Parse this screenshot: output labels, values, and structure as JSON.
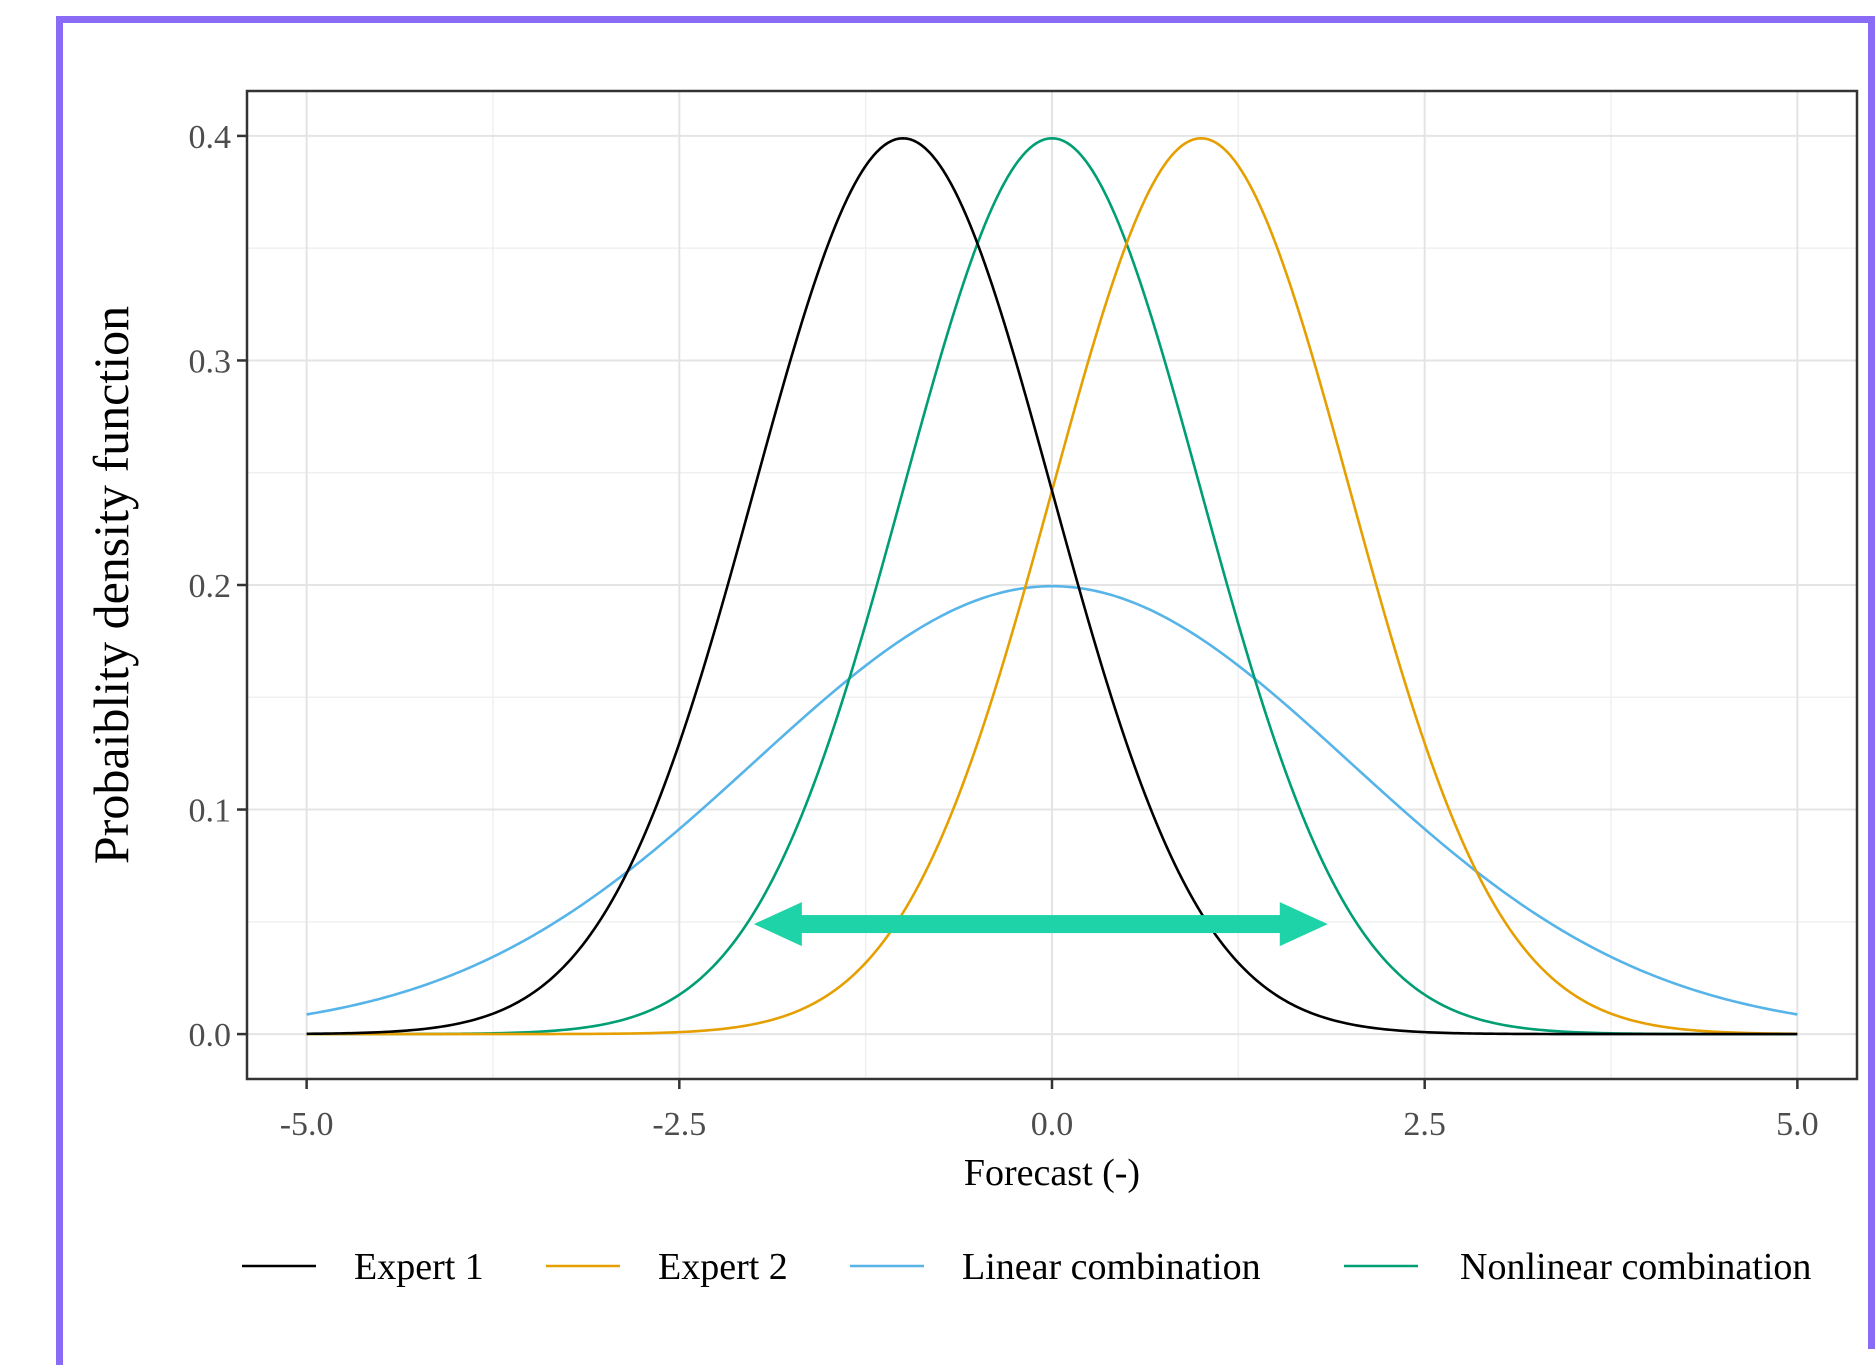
{
  "chart_data": {
    "type": "line",
    "xlabel": "Forecast (-)",
    "ylabel": "Probaiblity density function",
    "xlim": [
      -5.4,
      5.4
    ],
    "ylim": [
      -0.02,
      0.42
    ],
    "xticks": [
      -5.0,
      -2.5,
      0.0,
      2.5,
      5.0
    ],
    "xtick_labels": [
      "-5.0",
      "-2.5",
      "0.0",
      "2.5",
      "5.0"
    ],
    "yticks": [
      0.0,
      0.1,
      0.2,
      0.3,
      0.4
    ],
    "ytick_labels": [
      "0.0",
      "0.1",
      "0.2",
      "0.3",
      "0.4"
    ],
    "x_minor_gridlines": [
      -3.75,
      -1.25,
      1.25,
      3.75
    ],
    "y_minor_gridlines": [
      0.05,
      0.15,
      0.25,
      0.35
    ],
    "grid": true,
    "legend_position": "bottom",
    "series": [
      {
        "name": "Expert 1",
        "color": "#000000",
        "distribution": "normal",
        "mean": -1.0,
        "sd": 1.0,
        "x_range": [
          -5,
          5
        ]
      },
      {
        "name": "Expert 2",
        "color": "#e69f00",
        "distribution": "normal",
        "mean": 1.0,
        "sd": 1.0,
        "x_range": [
          -5,
          5
        ]
      },
      {
        "name": "Linear combination",
        "color": "#56b4e9",
        "distribution": "normal",
        "mean": 0.0,
        "sd": 2.0,
        "x_range": [
          -5,
          5
        ]
      },
      {
        "name": "Nonlinear combination",
        "color": "#009e73",
        "distribution": "normal",
        "mean": 0.0,
        "sd": 1.0,
        "x_range": [
          -5,
          5
        ]
      }
    ],
    "annotation_arrow": {
      "type": "double-headed",
      "color": "#1dd3a7",
      "x_from": -2.0,
      "x_to": 1.85,
      "y": 0.049
    }
  }
}
